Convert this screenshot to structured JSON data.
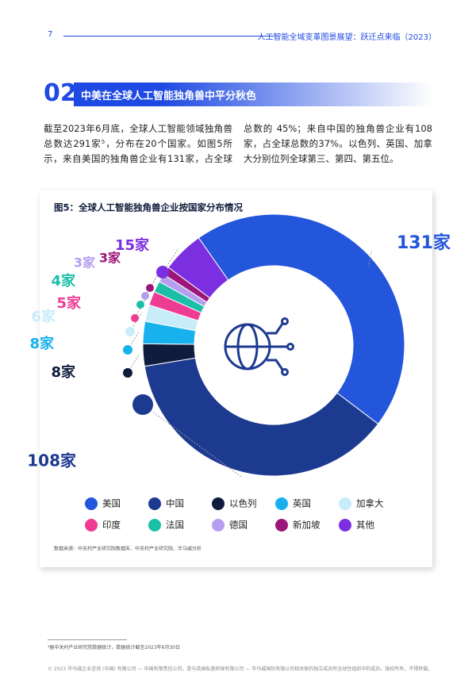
{
  "header": {
    "page_number": "7",
    "title": "人工智能全域变革图景展望：跃迁点来临（2023）"
  },
  "section": {
    "number": "02",
    "title": "中美在全球人工智能独角兽中平分秋色"
  },
  "body": "截至2023年6月底，全球人工智能领域独角兽总数达291家⁵，分布在20个国家。如图5所示，来自美国的独角兽企业有131家，占全球总数的 45%；来自中国的独角兽企业有108家，占全球总数的37%。以色列、英国、加拿大分别位列全球第三、第四、第五位。",
  "figure": {
    "source": "数据来源：中关村产业研究院数据库、中关村产业研究院、毕马威分析"
  },
  "chart_data": {
    "type": "donut",
    "title": "图5：全球人工智能独角兽企业按国家分布情况",
    "categories": [
      "美国",
      "中国",
      "以色列",
      "英国",
      "加拿大",
      "印度",
      "法国",
      "德国",
      "新加坡",
      "其他"
    ],
    "values": [
      131,
      108,
      8,
      8,
      6,
      5,
      4,
      3,
      3,
      15
    ],
    "value_labels": [
      "131家",
      "108家",
      "8家",
      "8家",
      "6家",
      "5家",
      "4家",
      "3家",
      "3家",
      "15家"
    ],
    "colors": [
      "#2456dc",
      "#1d3a91",
      "#0f1c3d",
      "#17b2ee",
      "#c9ecfa",
      "#ee3c94",
      "#1cbfa6",
      "#b49ef0",
      "#9c1679",
      "#7b2fe0"
    ]
  },
  "footnote": "⁵据中关村产业研究院数据统计，数据统计截至2023年6月30日",
  "copyright": "© 2023 毕马威企业咨询 (中国) 有限公司 — 中国有限责任公司，是与英国私营担保有限公司 — 毕马威国际有限公司相关联的独立成员所全球性组织中的成员。版权所有，不得转载。"
}
